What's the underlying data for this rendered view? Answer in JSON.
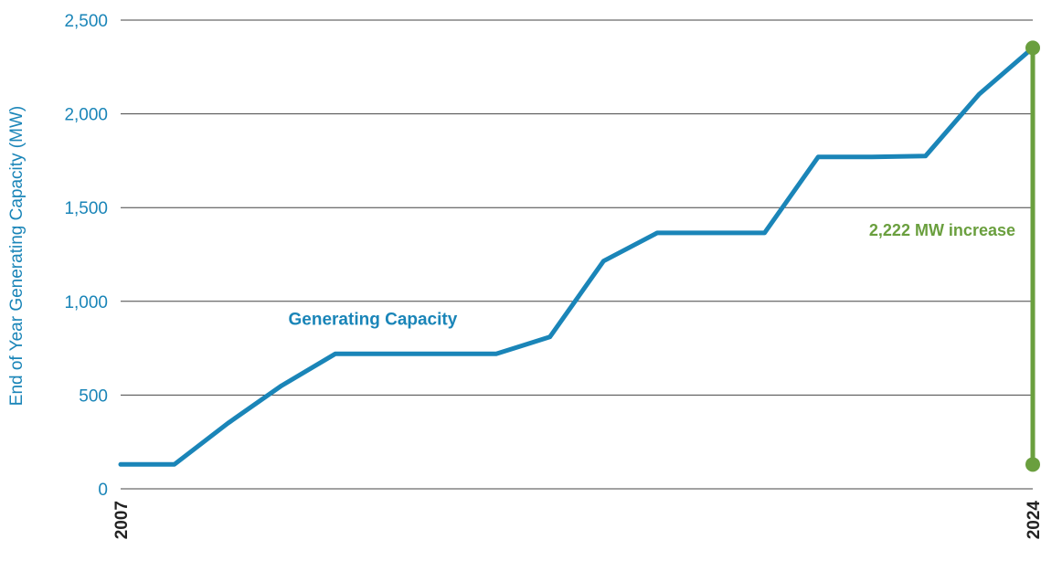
{
  "chart_data": {
    "type": "line",
    "ylabel": "End of Year Generating Capacity (MW)",
    "ylim": [
      0,
      2500
    ],
    "yticks": [
      "0",
      "500",
      "1,000",
      "1,500",
      "2,000",
      "2,500"
    ],
    "ytick_values": [
      0,
      500,
      1000,
      1500,
      2000,
      2500
    ],
    "x_tick_labels": [
      "2007",
      "2024"
    ],
    "xlim": [
      2007,
      2024
    ],
    "grid": true,
    "series": [
      {
        "name": "Generating Capacity",
        "color": "#1a85b8",
        "x": [
          2007,
          2008,
          2009,
          2010,
          2011,
          2012,
          2013,
          2014,
          2015,
          2016,
          2017,
          2018,
          2019,
          2020,
          2021,
          2022,
          2023,
          2024
        ],
        "y": [
          130,
          130,
          350,
          550,
          720,
          720,
          720,
          720,
          810,
          1215,
          1365,
          1365,
          1365,
          1770,
          1770,
          1775,
          2105,
          2352
        ]
      }
    ],
    "annotation": {
      "label": "2,222 MW increase",
      "color": "#6a9f3e",
      "x": 2024,
      "y_from": 130,
      "y_to": 2352
    }
  }
}
